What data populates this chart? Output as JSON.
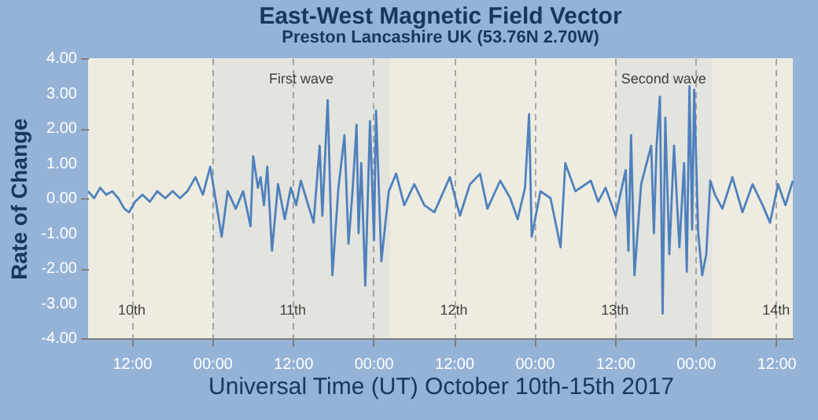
{
  "chart_data": {
    "type": "line",
    "title": "East-West Magnetic Field Vector",
    "subtitle": "Preston Lancashire UK (53.76N 2.70W)",
    "xlabel": "Universal Time (UT) October 10th-15th 2017",
    "ylabel": "Rate of Change",
    "x": [
      "2017-10-10T05:30",
      "2017-10-10T06:24",
      "2017-10-10T07:18",
      "2017-10-10T08:12",
      "2017-10-10T09:06",
      "2017-10-10T10:00",
      "2017-10-10T10:54",
      "2017-10-10T11:36",
      "2017-10-10T12:30",
      "2017-10-10T13:36",
      "2017-10-10T14:42",
      "2017-10-10T15:48",
      "2017-10-10T17:00",
      "2017-10-10T18:06",
      "2017-10-10T19:12",
      "2017-10-10T20:18",
      "2017-10-10T21:30",
      "2017-10-10T22:36",
      "2017-10-10T23:42",
      "2017-10-11T01:24",
      "2017-10-11T02:18",
      "2017-10-11T03:30",
      "2017-10-11T04:36",
      "2017-10-11T05:42",
      "2017-10-11T06:06",
      "2017-10-11T06:48",
      "2017-10-11T07:12",
      "2017-10-11T07:42",
      "2017-10-11T08:12",
      "2017-10-11T08:54",
      "2017-10-11T09:48",
      "2017-10-11T10:48",
      "2017-10-11T11:42",
      "2017-10-11T12:30",
      "2017-10-11T13:12",
      "2017-10-11T14:18",
      "2017-10-11T15:06",
      "2017-10-11T16:00",
      "2017-10-11T16:24",
      "2017-10-11T17:12",
      "2017-10-11T17:54",
      "2017-10-11T18:48",
      "2017-10-11T19:42",
      "2017-10-11T20:18",
      "2017-10-11T20:54",
      "2017-10-11T21:30",
      "2017-10-11T21:48",
      "2017-10-11T22:12",
      "2017-10-11T22:48",
      "2017-10-11T23:30",
      "2017-10-12T00:06",
      "2017-10-12T00:24",
      "2017-10-12T01:12",
      "2017-10-12T02:18",
      "2017-10-12T03:24",
      "2017-10-12T04:36",
      "2017-10-12T06:06",
      "2017-10-12T07:36",
      "2017-10-12T09:06",
      "2017-10-12T11:24",
      "2017-10-12T12:54",
      "2017-10-12T14:24",
      "2017-10-12T15:54",
      "2017-10-12T17:00",
      "2017-10-12T18:54",
      "2017-10-12T20:24",
      "2017-10-12T21:30",
      "2017-10-12T22:36",
      "2017-10-12T23:12",
      "2017-10-12T23:36",
      "2017-10-13T00:54",
      "2017-10-13T02:24",
      "2017-10-13T03:54",
      "2017-10-13T04:36",
      "2017-10-13T06:06",
      "2017-10-13T08:24",
      "2017-10-13T09:30",
      "2017-10-13T10:36",
      "2017-10-13T12:06",
      "2017-10-13T13:36",
      "2017-10-13T14:00",
      "2017-10-13T14:24",
      "2017-10-13T14:54",
      "2017-10-13T15:54",
      "2017-10-13T17:24",
      "2017-10-13T17:48",
      "2017-10-13T18:12",
      "2017-10-13T18:42",
      "2017-10-13T19:06",
      "2017-10-13T19:30",
      "2017-10-13T20:06",
      "2017-10-13T20:48",
      "2017-10-13T21:36",
      "2017-10-13T22:18",
      "2017-10-13T22:42",
      "2017-10-13T23:06",
      "2017-10-13T23:30",
      "2017-10-13T23:48",
      "2017-10-14T00:24",
      "2017-10-14T01:00",
      "2017-10-14T01:36",
      "2017-10-14T02:12",
      "2017-10-14T02:54",
      "2017-10-14T04:00",
      "2017-10-14T05:30",
      "2017-10-14T07:00",
      "2017-10-14T08:30",
      "2017-10-14T10:00",
      "2017-10-14T11:06",
      "2017-10-14T12:18",
      "2017-10-14T13:24",
      "2017-10-14T14:30"
    ],
    "series": [
      {
        "color": "#4f81bd",
        "values": [
          0.2,
          0.0,
          0.3,
          0.1,
          0.2,
          0.0,
          -0.3,
          -0.4,
          -0.1,
          0.1,
          -0.1,
          0.2,
          0.0,
          0.2,
          0.0,
          0.2,
          0.6,
          0.1,
          0.9,
          -1.1,
          0.2,
          -0.3,
          0.2,
          -0.8,
          1.2,
          0.3,
          0.6,
          -0.2,
          0.9,
          -1.5,
          0.4,
          -0.6,
          0.3,
          -0.2,
          0.5,
          -0.2,
          -0.7,
          1.5,
          -0.5,
          2.8,
          -2.2,
          0.3,
          1.8,
          -1.3,
          0.2,
          2.1,
          -1.0,
          1.0,
          -2.5,
          2.2,
          -1.2,
          2.5,
          -1.8,
          0.2,
          0.7,
          -0.2,
          0.4,
          -0.2,
          -0.4,
          0.6,
          -0.5,
          0.4,
          0.7,
          -0.3,
          0.5,
          0.0,
          -0.6,
          0.3,
          2.4,
          -1.1,
          0.2,
          0.0,
          -1.4,
          1.0,
          0.2,
          0.5,
          -0.1,
          0.3,
          -0.5,
          0.8,
          -1.5,
          1.8,
          -2.2,
          0.4,
          1.5,
          -1.0,
          1.5,
          2.9,
          -3.3,
          2.3,
          -1.6,
          1.5,
          -1.4,
          1.0,
          -2.1,
          3.2,
          -0.9,
          3.1,
          -1.0,
          -2.2,
          -1.6,
          0.5,
          0.1,
          -0.3,
          0.6,
          -0.4,
          0.4,
          -0.2,
          -0.7,
          0.4,
          -0.2,
          0.5
        ]
      }
    ],
    "xlim": [
      "2017-10-10T05:30",
      "2017-10-14T14:30"
    ],
    "xticks": [
      {
        "value": "2017-10-10T12:00",
        "label": "12:00"
      },
      {
        "value": "2017-10-11T00:00",
        "label": "00:00"
      },
      {
        "value": "2017-10-11T12:00",
        "label": "12:00"
      },
      {
        "value": "2017-10-12T00:00",
        "label": "00:00"
      },
      {
        "value": "2017-10-12T12:00",
        "label": "12:00"
      },
      {
        "value": "2017-10-13T00:00",
        "label": "00:00"
      },
      {
        "value": "2017-10-13T12:00",
        "label": "12:00"
      },
      {
        "value": "2017-10-14T00:00",
        "label": "00:00"
      },
      {
        "value": "2017-10-14T12:00",
        "label": "12:00"
      }
    ],
    "ylim": [
      -4,
      4
    ],
    "yticks": [
      {
        "value": -4,
        "label": "-4.00"
      },
      {
        "value": -3,
        "label": "-3.00"
      },
      {
        "value": -2,
        "label": "-2.00"
      },
      {
        "value": -1,
        "label": "-1.00"
      },
      {
        "value": 0,
        "label": "0.00"
      },
      {
        "value": 1,
        "label": "1.00"
      },
      {
        "value": 2,
        "label": "2.00"
      },
      {
        "value": 3,
        "label": "3.00"
      },
      {
        "value": 4,
        "label": "4.00"
      }
    ],
    "grid": "x",
    "marker": "none",
    "line_style": "solid",
    "bands": [
      {
        "axis": "x",
        "from": "2017-10-11T00:00",
        "to": "2017-10-12T02:30",
        "label": "First wave",
        "color": "#4f81bd"
      },
      {
        "axis": "x",
        "from": "2017-10-13T12:00",
        "to": "2017-10-14T02:30",
        "label": "Second wave",
        "color": "#4f81bd"
      }
    ],
    "x2lim": [
      "2017-10-10T05:30",
      "2017-10-14T14:30"
    ],
    "x2ticks": [
      {
        "value": "2017-10-10T12:00",
        "label": "10th"
      },
      {
        "value": "2017-10-11T12:00",
        "label": "11th"
      },
      {
        "value": "2017-10-12T12:00",
        "label": "12th"
      },
      {
        "value": "2017-10-13T12:00",
        "label": "13th"
      },
      {
        "value": "2017-10-14T12:00",
        "label": "14th"
      }
    ]
  }
}
